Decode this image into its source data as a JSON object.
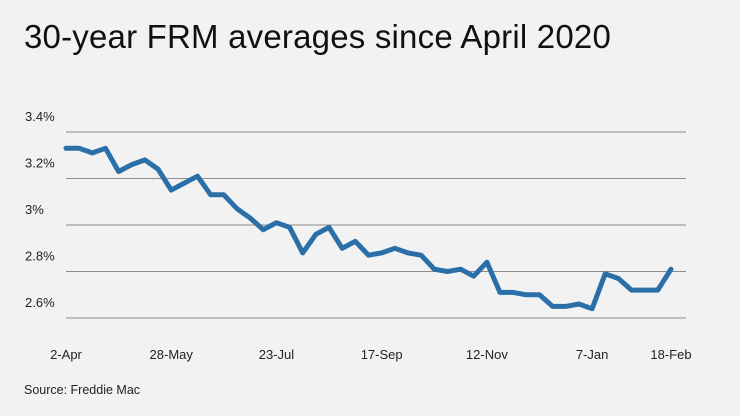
{
  "chart_data": {
    "type": "line",
    "title": "30-year FRM averages since April 2020",
    "source": "Source: Freddie Mac",
    "xlabel": "",
    "ylabel": "",
    "ylim": [
      2.5,
      3.4
    ],
    "y_ticks": [
      {
        "value": 2.6,
        "label": "2.6%"
      },
      {
        "value": 2.8,
        "label": "2.8%"
      },
      {
        "value": 3.0,
        "label": "3%"
      },
      {
        "value": 3.2,
        "label": "3.2%"
      },
      {
        "value": 3.4,
        "label": "3.4%"
      }
    ],
    "x_tick_labels": [
      {
        "index": 0,
        "label": "2-Apr"
      },
      {
        "index": 8,
        "label": "28-May"
      },
      {
        "index": 16,
        "label": "23-Jul"
      },
      {
        "index": 24,
        "label": "17-Sep"
      },
      {
        "index": 32,
        "label": "12-Nov"
      },
      {
        "index": 40,
        "label": "7-Jan"
      },
      {
        "index": 46,
        "label": "18-Feb"
      }
    ],
    "grid": true,
    "series": [
      {
        "name": "30-year FRM average",
        "color": "#2a6fa8",
        "values": [
          3.33,
          3.33,
          3.31,
          3.33,
          3.23,
          3.26,
          3.28,
          3.24,
          3.15,
          3.18,
          3.21,
          3.13,
          3.13,
          3.07,
          3.03,
          2.98,
          3.01,
          2.99,
          2.88,
          2.96,
          2.99,
          2.9,
          2.93,
          2.87,
          2.88,
          2.9,
          2.88,
          2.87,
          2.81,
          2.8,
          2.81,
          2.78,
          2.84,
          2.71,
          2.71,
          2.7,
          2.7,
          2.65,
          2.65,
          2.66,
          2.64,
          2.79,
          2.77,
          2.72,
          2.72,
          2.72,
          2.81
        ]
      }
    ]
  }
}
